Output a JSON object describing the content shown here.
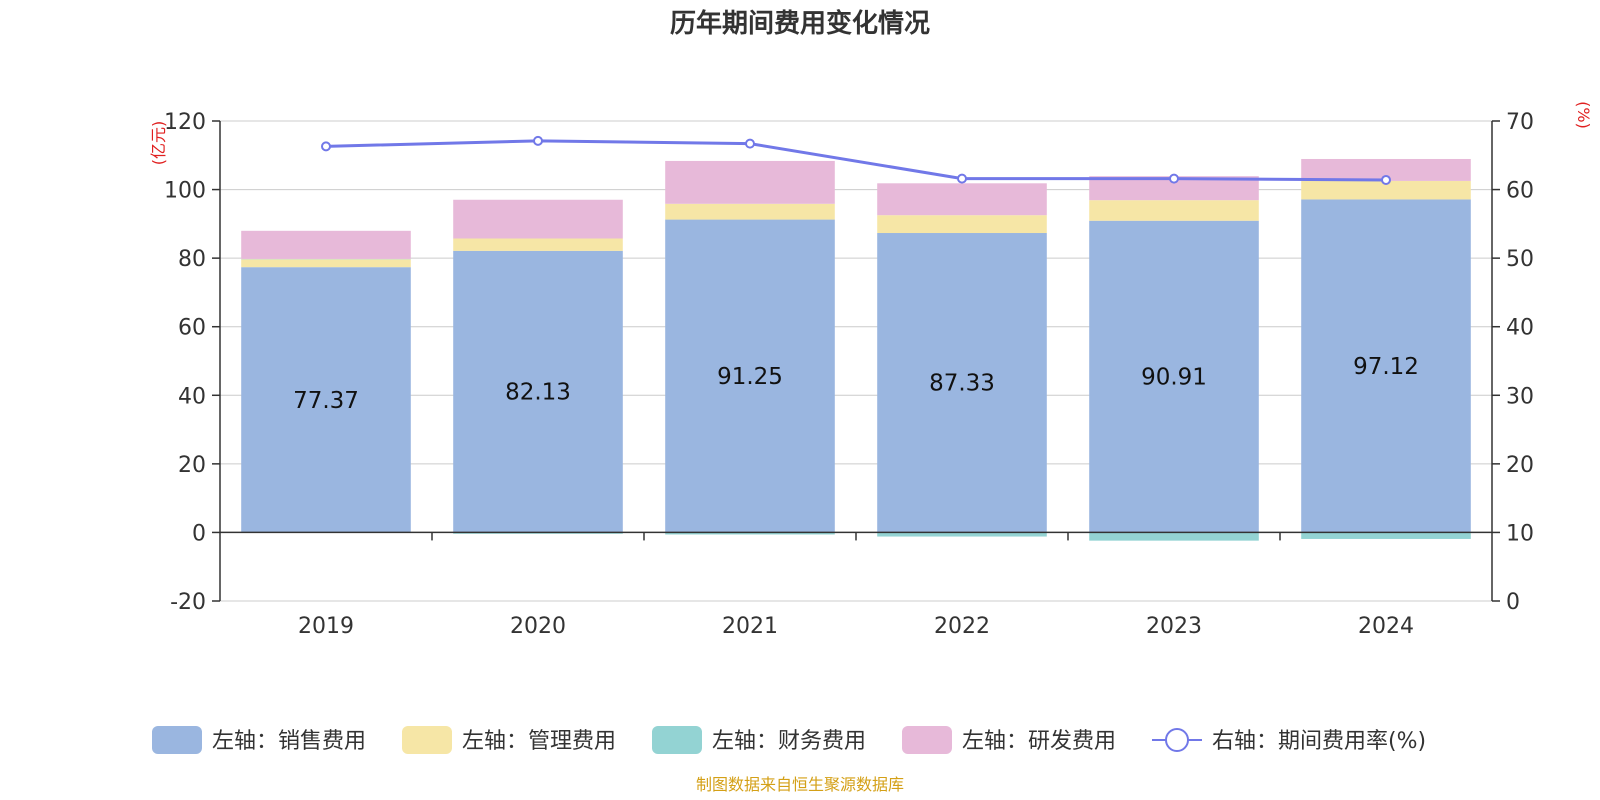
{
  "chart_data": {
    "type": "bar",
    "title": "历年期间费用变化情况",
    "categories": [
      "2019",
      "2020",
      "2021",
      "2022",
      "2023",
      "2024"
    ],
    "left_axis": {
      "unit": "(亿元)",
      "ylim": [
        -20,
        120
      ],
      "ticks": [
        "120",
        "100",
        "80",
        "60",
        "40",
        "20",
        "0",
        "-20"
      ]
    },
    "right_axis": {
      "unit": "(%)",
      "ylim": [
        0,
        70
      ],
      "ticks": [
        "70",
        "60",
        "50",
        "40",
        "30",
        "20",
        "10",
        "0"
      ]
    },
    "series": [
      {
        "name": "左轴：销售费用",
        "axis": "left",
        "kind": "bar",
        "color": "#9ab6e0",
        "values": [
          77.37,
          82.13,
          91.25,
          87.33,
          90.91,
          97.12
        ],
        "labels": [
          "77.37",
          "82.13",
          "91.25",
          "87.33",
          "90.91",
          "97.12"
        ]
      },
      {
        "name": "左轴：管理费用",
        "axis": "left",
        "kind": "bar",
        "color": "#f6e6a6",
        "values": [
          2.3,
          3.6,
          4.6,
          5.2,
          6.0,
          5.4
        ]
      },
      {
        "name": "左轴：财务费用",
        "axis": "left",
        "kind": "bar",
        "color": "#93d3d3",
        "values": [
          0.1,
          -0.4,
          -0.6,
          -1.2,
          -2.4,
          -1.9
        ]
      },
      {
        "name": "左轴：研发费用",
        "axis": "left",
        "kind": "bar",
        "color": "#e7b9d9",
        "values": [
          8.2,
          11.3,
          12.5,
          9.3,
          7.0,
          6.4
        ]
      },
      {
        "name": "右轴：期间费用率(%)",
        "axis": "right",
        "kind": "line",
        "color": "#7178e8",
        "values": [
          66.3,
          67.1,
          66.7,
          61.6,
          61.6,
          61.4
        ]
      }
    ],
    "grid": true,
    "legend_position": "bottom"
  },
  "source_note": "制图数据来自恒生聚源数据库",
  "colors": {
    "left_unit": "#e02020",
    "right_unit": "#e02020",
    "source": "#d4a017",
    "grid": "#cccccc"
  }
}
